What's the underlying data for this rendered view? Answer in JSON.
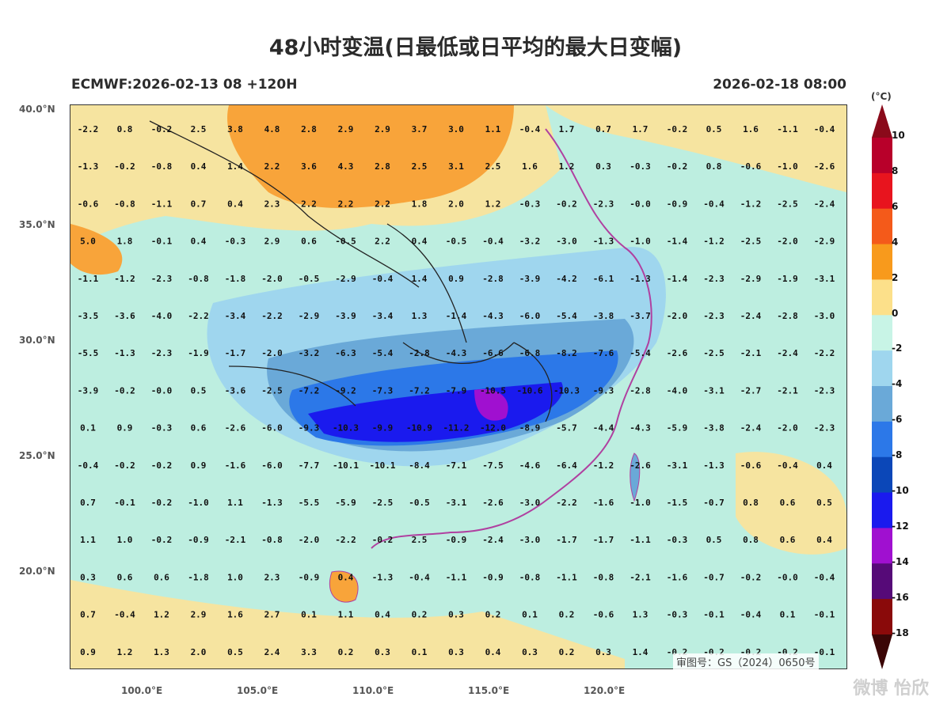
{
  "title": "48小时变温(日最低或日平均的最大日变幅)",
  "model_run": "ECMWF:2026-02-13 08 +120H",
  "valid_time": "2026-02-18 08:00",
  "lat_labels": [
    "40.0°N",
    "35.0°N",
    "30.0°N",
    "25.0°N",
    "20.0°N"
  ],
  "lon_labels": [
    "100.0°E",
    "105.0°E",
    "110.0°E",
    "115.0°E",
    "120.0°E"
  ],
  "colorbar": {
    "unit": "(°C)",
    "ticks": [
      "10",
      "8",
      "6",
      "4",
      "2",
      "0",
      "-2",
      "-4",
      "-6",
      "-8",
      "-10",
      "-12",
      "-14",
      "-16",
      "-18"
    ],
    "colors": [
      "#b8002a",
      "#e8141e",
      "#f45a1a",
      "#f89a1c",
      "#fce08a",
      "#c8f4e6",
      "#9fd6ee",
      "#6aa9d8",
      "#2c78e8",
      "#0b47b8",
      "#1a1aee",
      "#a010d0",
      "#560a78",
      "#8a0a0a"
    ]
  },
  "approval_number": "审图号：GS（2024）0650号",
  "watermark": "微博 怡欣",
  "grid_values": [
    [
      "-2.2",
      "0.8",
      "-0.2",
      "2.5",
      "3.8",
      "4.8",
      "2.8",
      "2.9",
      "2.9",
      "3.7",
      "3.0",
      "1.1",
      "-0.4",
      "1.7",
      "0.7",
      "1.7",
      "-0.2",
      "0.5",
      "1.6",
      "-1.1",
      "-0.4"
    ],
    [
      "-1.3",
      "-0.2",
      "-0.8",
      "0.4",
      "1.4",
      "2.2",
      "3.6",
      "4.3",
      "2.8",
      "2.5",
      "3.1",
      "2.5",
      "1.6",
      "1.2",
      "0.3",
      "-0.3",
      "-0.2",
      "0.8",
      "-0.6",
      "-1.0",
      "-2.6"
    ],
    [
      "-0.6",
      "-0.8",
      "-1.1",
      "0.7",
      "0.4",
      "2.3",
      "2.2",
      "2.2",
      "2.2",
      "1.8",
      "2.0",
      "1.2",
      "-0.3",
      "-0.2",
      "-2.3",
      "-0.0",
      "-0.9",
      "-0.4",
      "-1.2",
      "-2.5",
      "-2.4"
    ],
    [
      "5.0",
      "1.8",
      "-0.1",
      "0.4",
      "-0.3",
      "2.9",
      "0.6",
      "-0.5",
      "2.2",
      "0.4",
      "-0.5",
      "-0.4",
      "-3.2",
      "-3.0",
      "-1.3",
      "-1.0",
      "-1.4",
      "-1.2",
      "-2.5",
      "-2.0",
      "-2.9"
    ],
    [
      "-1.1",
      "-1.2",
      "-2.3",
      "-0.8",
      "-1.8",
      "-2.0",
      "-0.5",
      "-2.9",
      "-0.4",
      "1.4",
      "0.9",
      "-2.8",
      "-3.9",
      "-4.2",
      "-6.1",
      "-1.3",
      "-1.4",
      "-2.3",
      "-2.9",
      "-1.9",
      "-3.1"
    ],
    [
      "-3.5",
      "-3.6",
      "-4.0",
      "-2.2",
      "-3.4",
      "-2.2",
      "-2.9",
      "-3.9",
      "-3.4",
      "1.3",
      "-1.4",
      "-4.3",
      "-6.0",
      "-5.4",
      "-3.8",
      "-3.7",
      "-2.0",
      "-2.3",
      "-2.4",
      "-2.8",
      "-3.0"
    ],
    [
      "-5.5",
      "-1.3",
      "-2.3",
      "-1.9",
      "-1.7",
      "-2.0",
      "-3.2",
      "-6.3",
      "-5.4",
      "-2.8",
      "-4.3",
      "-6.6",
      "-6.8",
      "-8.2",
      "-7.6",
      "-5.4",
      "-2.6",
      "-2.5",
      "-2.1",
      "-2.4",
      "-2.2"
    ],
    [
      "-3.9",
      "-0.2",
      "-0.0",
      "0.5",
      "-3.6",
      "-2.5",
      "-7.2",
      "-9.2",
      "-7.3",
      "-7.2",
      "-7.9",
      "-10.5",
      "-10.6",
      "-10.3",
      "-9.3",
      "-2.8",
      "-4.0",
      "-3.1",
      "-2.7",
      "-2.1",
      "-2.3"
    ],
    [
      "0.1",
      "0.9",
      "-0.3",
      "0.6",
      "-2.6",
      "-6.0",
      "-9.3",
      "-10.3",
      "-9.9",
      "-10.9",
      "-11.2",
      "-12.0",
      "-8.9",
      "-5.7",
      "-4.4",
      "-4.3",
      "-5.9",
      "-3.8",
      "-2.4",
      "-2.0",
      "-2.3"
    ],
    [
      "-0.4",
      "-0.2",
      "-0.2",
      "0.9",
      "-1.6",
      "-6.0",
      "-7.7",
      "-10.1",
      "-10.1",
      "-8.4",
      "-7.1",
      "-7.5",
      "-4.6",
      "-6.4",
      "-1.2",
      "-2.6",
      "-3.1",
      "-1.3",
      "-0.6",
      "-0.4",
      "0.4"
    ],
    [
      "0.7",
      "-0.1",
      "-0.2",
      "-1.0",
      "1.1",
      "-1.3",
      "-5.5",
      "-5.9",
      "-2.5",
      "-0.5",
      "-3.1",
      "-2.6",
      "-3.0",
      "-2.2",
      "-1.6",
      "-1.0",
      "-1.5",
      "-0.7",
      "0.8",
      "0.6",
      "0.5"
    ],
    [
      "1.1",
      "1.0",
      "-0.2",
      "-0.9",
      "-2.1",
      "-0.8",
      "-2.0",
      "-2.2",
      "-0.2",
      "2.5",
      "-0.9",
      "-2.4",
      "-3.0",
      "-1.7",
      "-1.7",
      "-1.1",
      "-0.3",
      "0.5",
      "0.8",
      "0.6",
      "0.4"
    ],
    [
      "0.3",
      "0.6",
      "0.6",
      "-1.8",
      "1.0",
      "2.3",
      "-0.9",
      "0.4",
      "-1.3",
      "-0.4",
      "-1.1",
      "-0.9",
      "-0.8",
      "-1.1",
      "-0.8",
      "-2.1",
      "-1.6",
      "-0.7",
      "-0.2",
      "-0.0",
      "-0.4"
    ],
    [
      "0.7",
      "-0.4",
      "1.2",
      "2.9",
      "1.6",
      "2.7",
      "0.1",
      "1.1",
      "0.4",
      "0.2",
      "0.3",
      "0.2",
      "0.1",
      "0.2",
      "-0.6",
      "1.3",
      "-0.3",
      "-0.1",
      "-0.4",
      "0.1",
      "-0.1"
    ],
    [
      "0.9",
      "1.2",
      "1.3",
      "2.0",
      "0.5",
      "2.4",
      "3.3",
      "0.2",
      "0.3",
      "0.1",
      "0.3",
      "0.4",
      "0.3",
      "0.2",
      "0.3",
      "1.4",
      "-0.2",
      "-0.2",
      "-0.2",
      "-0.2",
      "-0.1"
    ]
  ]
}
